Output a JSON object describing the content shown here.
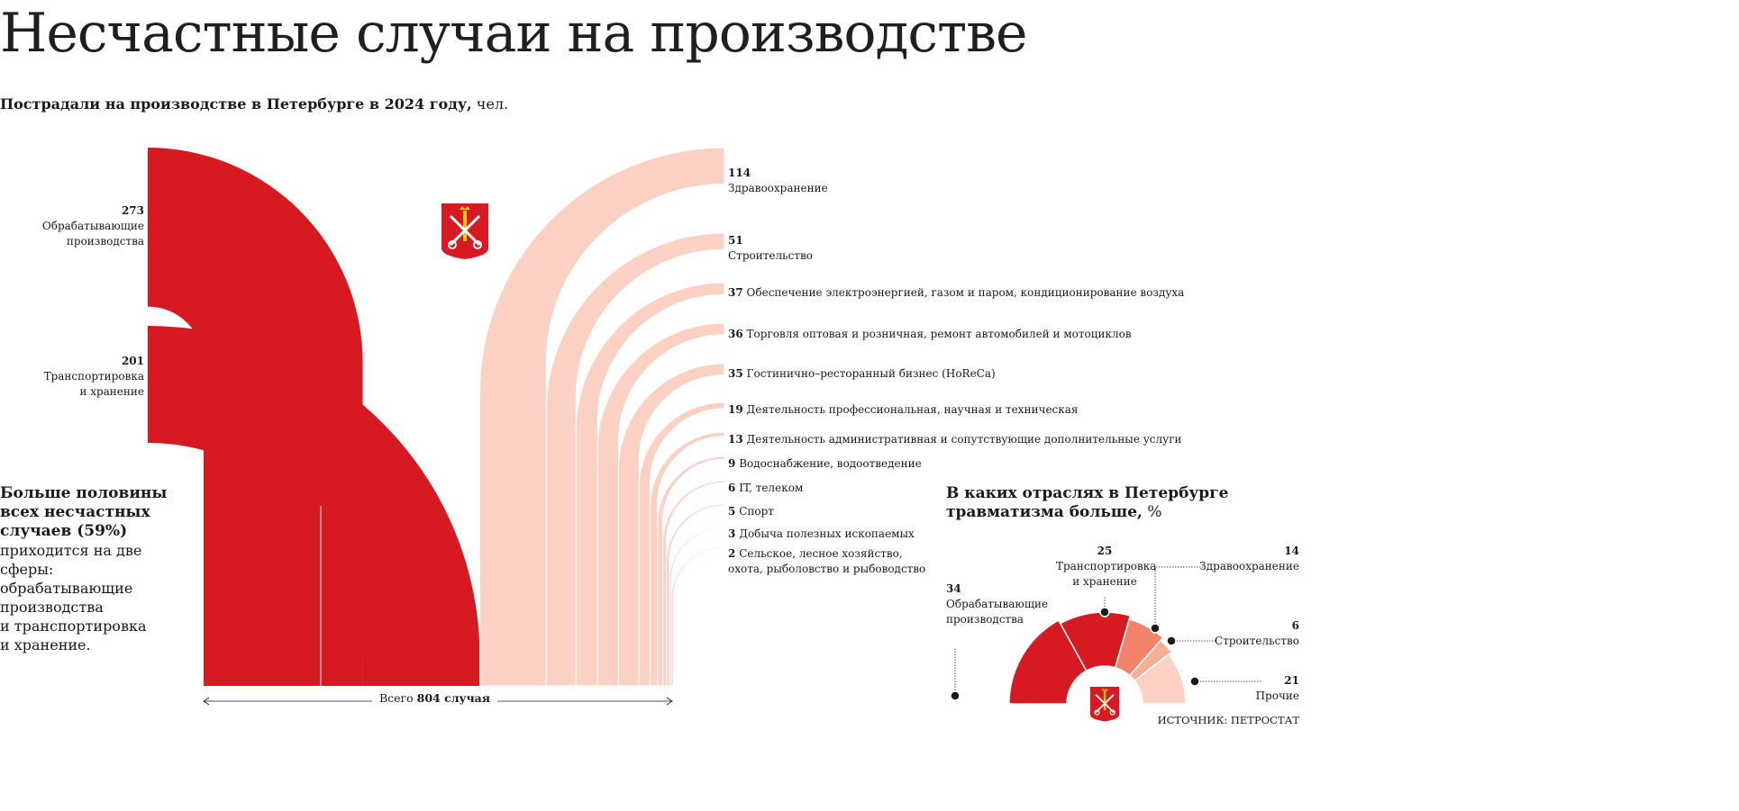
{
  "title": "Несчастные случаи на производстве",
  "subtitle": {
    "bold": "Пострадали на производстве в Петербурге в 2024 году,",
    "unit": "чел."
  },
  "colors": {
    "accent": "#d71a21",
    "light": "#fcd1c3",
    "mid": "#f4836b",
    "mid2": "#f8ad96"
  },
  "chart_data": [
    {
      "type": "bar",
      "title": "Пострадали на производстве в Петербурге в 2024 году, чел.",
      "series": [
        {
          "value": 273,
          "label": "Обрабатывающие производства",
          "label_lines": [
            "Обрабатывающие",
            "производства"
          ],
          "group": "main"
        },
        {
          "value": 201,
          "label": "Транспортировка и хранение",
          "label_lines": [
            "Транспортировка",
            "и хранение"
          ],
          "group": "main"
        },
        {
          "value": 114,
          "label": "Здравоохранение",
          "group": "other",
          "stacked": true
        },
        {
          "value": 51,
          "label": "Строительство",
          "group": "other",
          "stacked": true
        },
        {
          "value": 37,
          "label": "Обеспечение электроэнергией, газом и паром, кондиционирование воздуха",
          "group": "other"
        },
        {
          "value": 36,
          "label": "Торговля оптовая и розничная, ремонт автомобилей и мотоциклов",
          "group": "other"
        },
        {
          "value": 35,
          "label": "Гостинично–ресторанный бизнес (HoReCa)",
          "group": "other"
        },
        {
          "value": 19,
          "label": "Деятельность профессиональная, научная и техническая",
          "group": "other"
        },
        {
          "value": 13,
          "label": "Деятельность административная и сопутствующие дополнительные услуги",
          "group": "other"
        },
        {
          "value": 9,
          "label": "Водоснабжение, водоотведение",
          "group": "other"
        },
        {
          "value": 6,
          "label": "IT, телеком",
          "group": "other"
        },
        {
          "value": 5,
          "label": "Спорт",
          "group": "other"
        },
        {
          "value": 3,
          "label": "Добыча полезных ископаемых",
          "group": "other"
        },
        {
          "value": 2,
          "label": "Сельское, лесное хозяйство, охота, рыболовство и рыбоводство",
          "label_lines": [
            "Сельское, лесное хозяйство,",
            "охота, рыболовство и рыбоводство"
          ],
          "group": "other",
          "stacked": true
        }
      ],
      "total": {
        "prefix": "Всего",
        "value": "804 случая"
      }
    },
    {
      "type": "pie",
      "title_bold": "В каких отраслях в Петербурге травматизма больше,",
      "title_bold_lines": [
        "В каких отраслях в Петербурге",
        "травматизма больше,"
      ],
      "unit": "%",
      "slices": [
        {
          "label": "Обрабатывающие производства",
          "label_lines": [
            "Обрабатывающие",
            "производства"
          ],
          "value": 34,
          "color": "#d71a21"
        },
        {
          "label": "Транспортировка и хранение",
          "label_lines": [
            "Транспортировка",
            "и хранение"
          ],
          "value": 25,
          "color": "#d71a21"
        },
        {
          "label": "Здравоохранение",
          "value": 14,
          "color": "#f4836b"
        },
        {
          "label": "Строительство",
          "value": 6,
          "color": "#f8ad96"
        },
        {
          "label": "Прочие",
          "value": 21,
          "color": "#fcd1c3"
        }
      ]
    }
  ],
  "callout": {
    "headline": "Больше половины всех несчастных случаев (59%)",
    "headline_lines": [
      "Больше половины",
      "всех несчастных",
      "случаев (59%)"
    ],
    "body_lines": [
      "приходится на две сферы:",
      "обрабатывающие",
      "производства",
      "и транспортировка",
      "и хранение."
    ]
  },
  "source": "ИСТОЧНИК: ПЕТРОСТАТ"
}
